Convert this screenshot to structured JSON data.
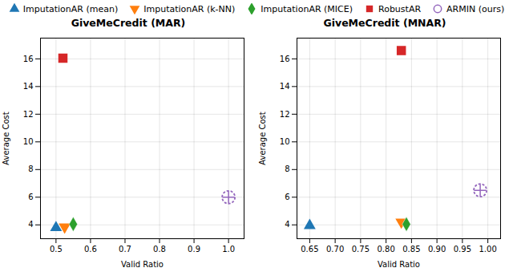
{
  "chart_data": [
    {
      "type": "scatter",
      "title": "GiveMeCredit  (MAR)",
      "xlabel": "Valid Ratio",
      "ylabel": "Average Cost",
      "xlim": [
        0.455,
        1.045
      ],
      "ylim": [
        3.0,
        17.5
      ],
      "xticks": [
        0.5,
        0.6,
        0.7,
        0.8,
        0.9,
        {
          "value": 1.0,
          "label": "1.0"
        }
      ],
      "yticks": [
        4,
        6,
        8,
        10,
        12,
        14,
        16
      ],
      "grid": true,
      "legend": "top",
      "series": [
        {
          "name": "ImputationAR (mean)",
          "color": "#1f77b4",
          "marker": "triangle_up",
          "x": [
            0.5
          ],
          "values": [
            3.8
          ]
        },
        {
          "name": "ImputationAR (k-NN)",
          "color": "#ff7f0e",
          "marker": "triangle_down",
          "x": [
            0.525
          ],
          "values": [
            3.85
          ]
        },
        {
          "name": "ImputationAR (MICE)",
          "color": "#2ca02c",
          "marker": "diamond",
          "x": [
            0.55
          ],
          "values": [
            4.05
          ]
        },
        {
          "name": "RobustAR",
          "color": "#d62728",
          "marker": "square",
          "x": [
            0.52
          ],
          "values": [
            16.05
          ]
        },
        {
          "name": "ARMIN (ours)",
          "color": "#9467bd",
          "marker": "circle_plus",
          "x": [
            1.0
          ],
          "values": [
            6.0
          ]
        }
      ]
    },
    {
      "type": "scatter",
      "title": "GiveMeCredit  (MNAR)",
      "xlabel": "Valid Ratio",
      "ylabel": "Average Cost",
      "xlim": [
        0.625,
        1.025
      ],
      "ylim": [
        3.0,
        17.5
      ],
      "xticks": [
        0.65,
        {
          "value": 0.7,
          "label": "0.70"
        },
        0.75,
        {
          "value": 0.8,
          "label": "0.80"
        },
        0.85,
        {
          "value": 0.9,
          "label": "0.90"
        },
        0.95,
        {
          "value": 1.0,
          "label": "1.00"
        }
      ],
      "yticks": [
        4,
        6,
        8,
        10,
        12,
        14,
        16
      ],
      "grid": true,
      "series": [
        {
          "name": "ImputationAR (mean)",
          "color": "#1f77b4",
          "marker": "triangle_up",
          "x": [
            0.65
          ],
          "values": [
            3.95
          ]
        },
        {
          "name": "ImputationAR (k-NN)",
          "color": "#ff7f0e",
          "marker": "triangle_down",
          "x": [
            0.83
          ],
          "values": [
            4.2
          ]
        },
        {
          "name": "ImputationAR (MICE)",
          "color": "#2ca02c",
          "marker": "diamond",
          "x": [
            0.84
          ],
          "values": [
            4.05
          ]
        },
        {
          "name": "RobustAR",
          "color": "#d62728",
          "marker": "square",
          "x": [
            0.83
          ],
          "values": [
            16.6
          ]
        },
        {
          "name": "ARMIN (ours)",
          "color": "#9467bd",
          "marker": "circle_plus",
          "x": [
            0.985
          ],
          "values": [
            6.5
          ]
        }
      ]
    }
  ]
}
